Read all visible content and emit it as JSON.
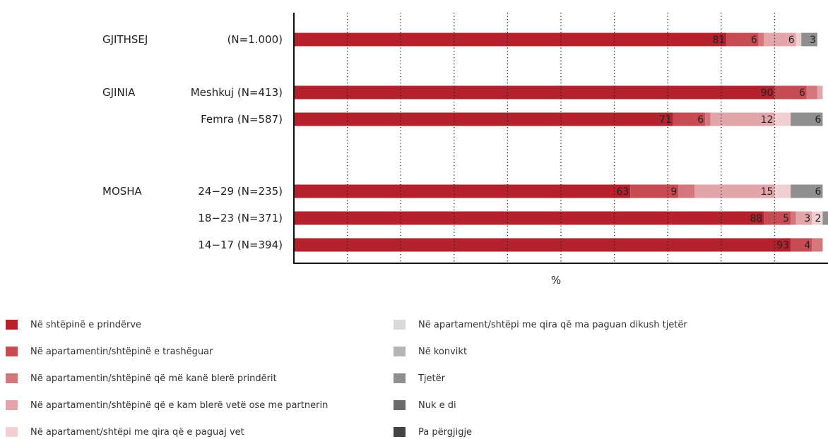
{
  "chart_data": {
    "type": "bar",
    "orientation": "horizontal",
    "stacked": true,
    "xlabel": "%",
    "xlim": [
      0,
      100
    ],
    "grid": "vertical-dotted",
    "legend_position": "bottom",
    "groups": [
      {
        "name": "GJITHSEJ",
        "rows": [
          0
        ]
      },
      {
        "name": "GJINIA",
        "rows": [
          1,
          2
        ]
      },
      {
        "name": "MOSHA",
        "rows": [
          3,
          4,
          5
        ]
      }
    ],
    "categories": [
      "(N=1.000)",
      "Meshkuj (N=413)",
      "Femra (N=587)",
      "24−29 (N=235)",
      "18−23 (N=371)",
      "14−17 (N=394)"
    ],
    "series": [
      {
        "name": "Në shtëpinë e prindërve",
        "color": "#b4202b",
        "values": [
          81,
          90,
          71,
          63,
          88,
          93
        ]
      },
      {
        "name": "Në apartamentin/shtëpinë e trashëguar",
        "color": "#c84b54",
        "values": [
          6,
          6,
          6,
          9,
          5,
          4
        ]
      },
      {
        "name": "Në apartamentin/shtëpinë që më kanë blerë prindërit",
        "color": "#d4777d",
        "values": [
          1,
          2,
          1,
          3,
          1,
          2
        ]
      },
      {
        "name": "Në apartamentin/shtëpinë që e kam blerë vetë ose me partnerin",
        "color": "#e2a5a9",
        "values": [
          6,
          1,
          12,
          15,
          3,
          0
        ]
      },
      {
        "name": "Në apartament/shtëpi me qira që e paguaj vet",
        "color": "#f0d0d2",
        "values": [
          1,
          0,
          3,
          3,
          2,
          0
        ]
      },
      {
        "name": "Në apartament/shtëpi me qira që ma paguan dikush tjetër",
        "color": "#dadada",
        "values": [
          0,
          0,
          0,
          0,
          0,
          0
        ]
      },
      {
        "name": "Në konvikt",
        "color": "#b4b4b4",
        "values": [
          0,
          0,
          0,
          0,
          0,
          0
        ]
      },
      {
        "name": "Tjetër",
        "color": "#8f8f8f",
        "values": [
          3,
          0,
          6,
          6,
          2,
          0
        ]
      },
      {
        "name": "Nuk e di",
        "color": "#6b6b6b",
        "values": [
          0,
          0,
          0,
          0,
          0,
          0
        ]
      },
      {
        "name": "Pa përgjigje",
        "color": "#444444",
        "values": [
          0,
          0,
          0,
          0,
          0,
          0
        ]
      }
    ],
    "data_labels": [
      [
        "81",
        "6",
        "",
        "6",
        "",
        "",
        "",
        "3",
        "",
        ""
      ],
      [
        "90",
        "6",
        "",
        "",
        "",
        "",
        "",
        "",
        "",
        ""
      ],
      [
        "71",
        "6",
        "",
        "12",
        "",
        "",
        "",
        "6",
        "",
        ""
      ],
      [
        "63",
        "9",
        "",
        "15",
        "",
        "",
        "",
        "6",
        "",
        ""
      ],
      [
        "88",
        "5",
        "",
        "3",
        "2",
        "",
        "",
        "",
        "",
        ""
      ],
      [
        "93",
        "4",
        "",
        "",
        "",
        "",
        "",
        "",
        "",
        ""
      ]
    ]
  }
}
